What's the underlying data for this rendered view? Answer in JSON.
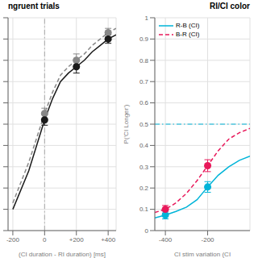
{
  "chart_data": [
    {
      "type": "line",
      "title": "ngruent trials",
      "x_label": "(CI duration - RI duration) [ms]",
      "xlim": [
        -230,
        450
      ],
      "xticks": [
        -200,
        0,
        {
          "value": 200,
          "label": "+200"
        },
        {
          "value": 400,
          "label": "+400"
        }
      ],
      "ylim": [
        0,
        1
      ],
      "yticks": [
        0,
        0.1,
        0.2,
        0.3,
        0.4,
        0.5,
        0.6,
        0.7,
        0.8,
        0.9,
        1
      ],
      "tick_labels": "x",
      "grid": true,
      "vline": {
        "x": 0,
        "color": "#aaaaaa",
        "line_style": "dashdot"
      },
      "series": [
        {
          "type": "line",
          "color": "#888888",
          "line_style": "dashed",
          "x": [
            -200,
            -100,
            0,
            50,
            100,
            150,
            200,
            250,
            300,
            350,
            400,
            450
          ],
          "values": [
            0.13,
            0.32,
            0.55,
            0.65,
            0.73,
            0.77,
            0.8,
            0.83,
            0.87,
            0.9,
            0.93,
            0.95
          ]
        },
        {
          "type": "line",
          "color": "#1a1a1a",
          "line_style": "solid",
          "x": [
            -200,
            -100,
            0,
            50,
            100,
            150,
            200,
            250,
            300,
            350,
            400,
            450
          ],
          "values": [
            0.1,
            0.28,
            0.52,
            0.62,
            0.7,
            0.74,
            0.77,
            0.8,
            0.84,
            0.87,
            0.9,
            0.92
          ]
        },
        {
          "type": "scatter",
          "color": "#888888",
          "marker": "o",
          "x": [
            0,
            200,
            400
          ],
          "values": [
            0.55,
            0.8,
            0.93
          ],
          "errors": [
            0.025,
            0.03,
            0.02
          ]
        },
        {
          "type": "scatter",
          "color": "#1a1a1a",
          "marker": "o",
          "x": [
            0,
            200,
            400
          ],
          "values": [
            0.52,
            0.77,
            0.9
          ],
          "errors": [
            0.025,
            0.03,
            0.02
          ]
        }
      ]
    },
    {
      "type": "line",
      "title": "RI/CI color",
      "x_label": "CI stim variation (CI",
      "y_label": "P('CI Longer')",
      "xlim": [
        -450,
        0
      ],
      "xticks": [
        -400,
        -200
      ],
      "ylim": [
        0,
        1
      ],
      "yticks": [
        0,
        0.1,
        0.2,
        0.3,
        0.4,
        0.5,
        0.6,
        0.7,
        0.8,
        0.9,
        1
      ],
      "grid": true,
      "legend": "upper left",
      "hline": {
        "y": 0.5,
        "color": "#00B4D8",
        "line_style": "dashdot"
      },
      "series": [
        {
          "type": "line",
          "name": "R-B (CI)",
          "color": "#00B4D8",
          "line_style": "solid",
          "x": [
            -450,
            -400,
            -350,
            -300,
            -250,
            -200,
            -150,
            -100,
            -50,
            0
          ],
          "values": [
            0.06,
            0.073,
            0.09,
            0.11,
            0.145,
            0.205,
            0.26,
            0.3,
            0.33,
            0.35
          ]
        },
        {
          "type": "line",
          "name": "B-R (CI)",
          "color": "#E8185A",
          "line_style": "dashed",
          "x": [
            -450,
            -400,
            -350,
            -300,
            -250,
            -200,
            -150,
            -100,
            -50,
            0
          ],
          "values": [
            0.085,
            0.1,
            0.13,
            0.175,
            0.235,
            0.305,
            0.375,
            0.43,
            0.46,
            0.48
          ]
        },
        {
          "type": "scatter",
          "color": "#00B4D8",
          "marker": "o",
          "x": [
            -400,
            -200
          ],
          "values": [
            0.073,
            0.205
          ],
          "errors": [
            0.018,
            0.025
          ]
        },
        {
          "type": "scatter",
          "color": "#E8185A",
          "marker": "o",
          "x": [
            -400,
            -200
          ],
          "values": [
            0.1,
            0.305
          ],
          "errors": [
            0.018,
            0.028
          ]
        }
      ]
    }
  ]
}
